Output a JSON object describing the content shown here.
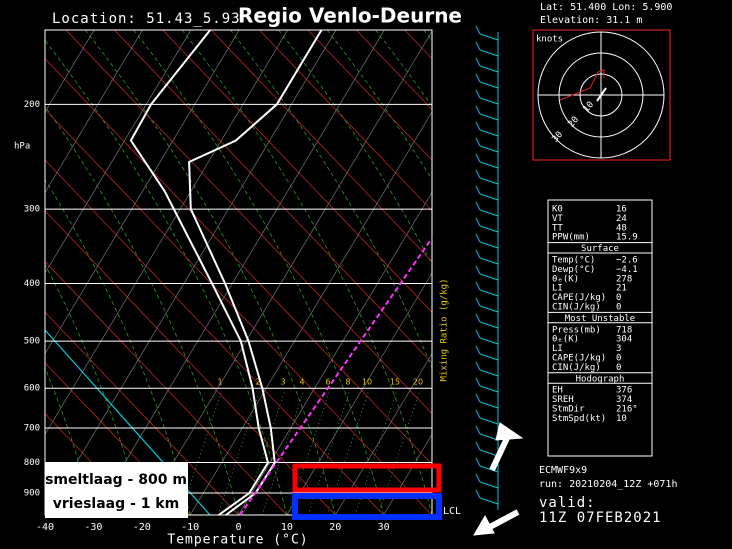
{
  "header": {
    "title": "Regio Venlo-Deurne",
    "location": "Location: 51.43_5.93",
    "lat_lon": "Lat: 51.400    Lon: 5.900",
    "elevation": "Elevation: 31.1     m"
  },
  "chart_data": {
    "type": "skewt",
    "x_label": "Temperature (°C)",
    "y_label": "hPa",
    "xlim": [
      -40,
      40
    ],
    "xticks": [
      -40,
      -30,
      -20,
      -10,
      0,
      10,
      20,
      30
    ],
    "ylim": [
      980,
      150
    ],
    "yticks": [
      200,
      300,
      400,
      500,
      600,
      700,
      800,
      900
    ],
    "log_y": true,
    "mixing_ratio_label": "Mixing Ratio (g/kg)",
    "mixing_ratios": [
      1,
      2,
      3,
      4,
      6,
      8,
      10,
      15,
      20
    ],
    "lcl_label": "LCL",
    "series": [
      {
        "color": "#ffffff",
        "y": [
          980,
          900,
          800,
          700,
          600,
          500,
          400,
          300,
          250,
          230,
          200,
          150
        ],
        "values": [
          -2.6,
          0.8,
          1.0,
          -4.1,
          -10.8,
          -19.5,
          -31.5,
          -47.8,
          -54,
          -47,
          -43,
          -43
        ]
      },
      {
        "color": "#ffffff",
        "y": [
          980,
          900,
          800,
          700,
          600,
          500,
          400,
          280,
          230,
          200,
          150
        ],
        "values": [
          -4.1,
          -0.5,
          -0.4,
          -6.6,
          -12.8,
          -21.1,
          -34.2,
          -55.4,
          -68.7,
          -69,
          -66
        ]
      }
    ]
  },
  "annotations": {
    "melt": "smeltlaag - 800 m",
    "freeze": "vrieslaag - 1 km"
  },
  "hodograph": {
    "units": "knots",
    "rings": [
      "10",
      "20",
      "30"
    ]
  },
  "index_table": {
    "top_rows": [
      [
        "K0",
        "16"
      ],
      [
        "VT",
        "24"
      ],
      [
        "TT",
        "48"
      ],
      [
        "PPW(mm)",
        "15.9"
      ]
    ],
    "sections": [
      {
        "title": "Surface",
        "rows": [
          [
            "Temp(°C)",
            "−2.6"
          ],
          [
            "Dewp(°C)",
            "−4.1"
          ],
          [
            "θₑ(K)",
            "278"
          ],
          [
            "LI",
            "21"
          ],
          [
            "CAPE(J/kg)",
            "0"
          ],
          [
            "CIN(J/kg)",
            "0"
          ]
        ]
      },
      {
        "title": "Most Unstable",
        "rows": [
          [
            "Press(mb)",
            "718"
          ],
          [
            "θₑ(K)",
            "304"
          ],
          [
            "LI",
            "3"
          ],
          [
            "CAPE(J/kg)",
            "0"
          ],
          [
            "CIN(J/kg)",
            "0"
          ]
        ]
      },
      {
        "title": "Hodograph",
        "rows": [
          [
            "EH",
            "376"
          ],
          [
            "SREH",
            "374"
          ],
          [
            "StmDir",
            "216°"
          ],
          [
            "StmSpd(kt)",
            "10"
          ]
        ]
      }
    ]
  },
  "model": {
    "name": "ECMWF9x9",
    "run": "run: 20210204_12Z +071h",
    "valid_label": "valid:",
    "valid": "11Z 07FEB2021"
  }
}
